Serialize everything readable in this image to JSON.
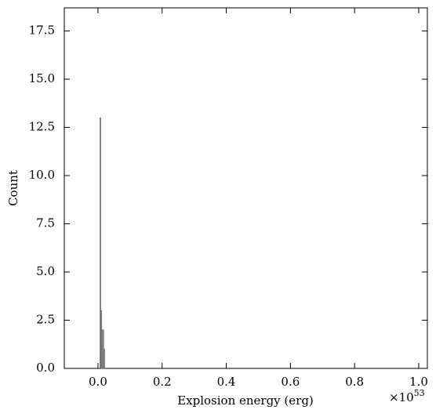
{
  "chart_data": {
    "type": "histogram",
    "xlabel": "Explosion energy (erg)",
    "ylabel": "Count",
    "x_offset_base": "×10",
    "x_offset_exponent": "53",
    "bins": [
      0.006,
      0.009,
      0.012,
      0.015,
      0.018,
      0.021
    ],
    "values": [
      13,
      3,
      2,
      2,
      1
    ],
    "color": "#999999",
    "edgecolor": "#555555",
    "xlim": [
      -0.105,
      1.027
    ],
    "ylim": [
      0,
      18.7
    ],
    "xticks": [
      {
        "value": 0,
        "label": "0.0"
      },
      0.2,
      0.4,
      0.6,
      0.8,
      {
        "value": 1,
        "label": "1.0"
      }
    ],
    "yticks": [
      {
        "value": 0,
        "label": "0.0"
      },
      2.5,
      {
        "value": 5,
        "label": "5.0"
      },
      7.5,
      {
        "value": 10,
        "label": "10.0"
      },
      12.5,
      {
        "value": 15,
        "label": "15.0"
      },
      17.5
    ],
    "grid": false
  }
}
